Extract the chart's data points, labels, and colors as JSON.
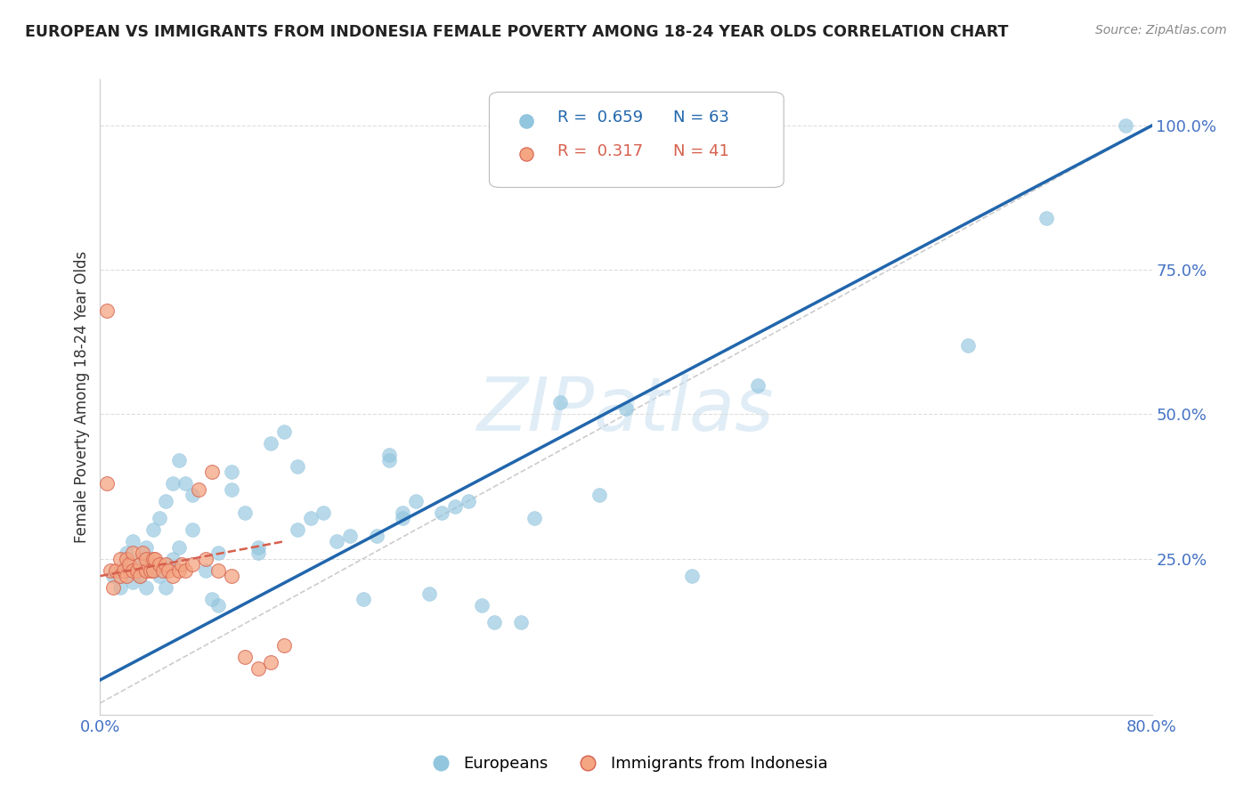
{
  "title": "EUROPEAN VS IMMIGRANTS FROM INDONESIA FEMALE POVERTY AMONG 18-24 YEAR OLDS CORRELATION CHART",
  "source": "Source: ZipAtlas.com",
  "ylabel": "Female Poverty Among 18-24 Year Olds",
  "xlim": [
    0.0,
    0.8
  ],
  "ylim": [
    -0.02,
    1.08
  ],
  "blue_R": 0.659,
  "blue_N": 63,
  "pink_R": 0.317,
  "pink_N": 41,
  "watermark": "ZIPatlas",
  "blue_color": "#92c5de",
  "blue_line_color": "#2166ac",
  "pink_color": "#f4a582",
  "pink_line_color": "#d6604d",
  "legend_blue_label": "Europeans",
  "legend_pink_label": "Immigrants from Indonesia",
  "blue_scatter_x": [
    0.01,
    0.015,
    0.02,
    0.02,
    0.025,
    0.025,
    0.03,
    0.03,
    0.035,
    0.035,
    0.04,
    0.04,
    0.045,
    0.045,
    0.05,
    0.05,
    0.055,
    0.055,
    0.06,
    0.06,
    0.065,
    0.07,
    0.07,
    0.08,
    0.085,
    0.09,
    0.09,
    0.1,
    0.1,
    0.11,
    0.12,
    0.12,
    0.13,
    0.14,
    0.15,
    0.15,
    0.16,
    0.17,
    0.18,
    0.19,
    0.2,
    0.21,
    0.22,
    0.22,
    0.23,
    0.23,
    0.24,
    0.25,
    0.26,
    0.27,
    0.28,
    0.29,
    0.3,
    0.32,
    0.33,
    0.35,
    0.38,
    0.4,
    0.45,
    0.5,
    0.66,
    0.72,
    0.78
  ],
  "blue_scatter_y": [
    0.22,
    0.2,
    0.24,
    0.26,
    0.21,
    0.28,
    0.22,
    0.25,
    0.2,
    0.27,
    0.23,
    0.3,
    0.22,
    0.32,
    0.2,
    0.35,
    0.25,
    0.38,
    0.27,
    0.42,
    0.38,
    0.3,
    0.36,
    0.23,
    0.18,
    0.17,
    0.26,
    0.37,
    0.4,
    0.33,
    0.26,
    0.27,
    0.45,
    0.47,
    0.41,
    0.3,
    0.32,
    0.33,
    0.28,
    0.29,
    0.18,
    0.29,
    0.42,
    0.43,
    0.32,
    0.33,
    0.35,
    0.19,
    0.33,
    0.34,
    0.35,
    0.17,
    0.14,
    0.14,
    0.32,
    0.52,
    0.36,
    0.51,
    0.22,
    0.55,
    0.62,
    0.84,
    1.0
  ],
  "pink_scatter_x": [
    0.005,
    0.005,
    0.008,
    0.01,
    0.012,
    0.015,
    0.015,
    0.018,
    0.02,
    0.02,
    0.022,
    0.025,
    0.025,
    0.028,
    0.03,
    0.03,
    0.032,
    0.035,
    0.035,
    0.038,
    0.04,
    0.04,
    0.042,
    0.045,
    0.048,
    0.05,
    0.052,
    0.055,
    0.06,
    0.062,
    0.065,
    0.07,
    0.075,
    0.08,
    0.085,
    0.09,
    0.1,
    0.11,
    0.12,
    0.13,
    0.14
  ],
  "pink_scatter_y": [
    0.68,
    0.38,
    0.23,
    0.2,
    0.23,
    0.22,
    0.25,
    0.23,
    0.22,
    0.25,
    0.24,
    0.23,
    0.26,
    0.23,
    0.24,
    0.22,
    0.26,
    0.23,
    0.25,
    0.23,
    0.25,
    0.23,
    0.25,
    0.24,
    0.23,
    0.24,
    0.23,
    0.22,
    0.23,
    0.24,
    0.23,
    0.24,
    0.37,
    0.25,
    0.4,
    0.23,
    0.22,
    0.08,
    0.06,
    0.07,
    0.1
  ],
  "blue_regline_x": [
    0.0,
    0.8
  ],
  "blue_regline_y": [
    0.04,
    1.0
  ],
  "pink_regline_x": [
    0.0,
    0.14
  ],
  "pink_regline_y": [
    0.22,
    0.28
  ],
  "ref_line_x": [
    0.0,
    0.8
  ],
  "ref_line_y": [
    0.0,
    1.0
  ]
}
